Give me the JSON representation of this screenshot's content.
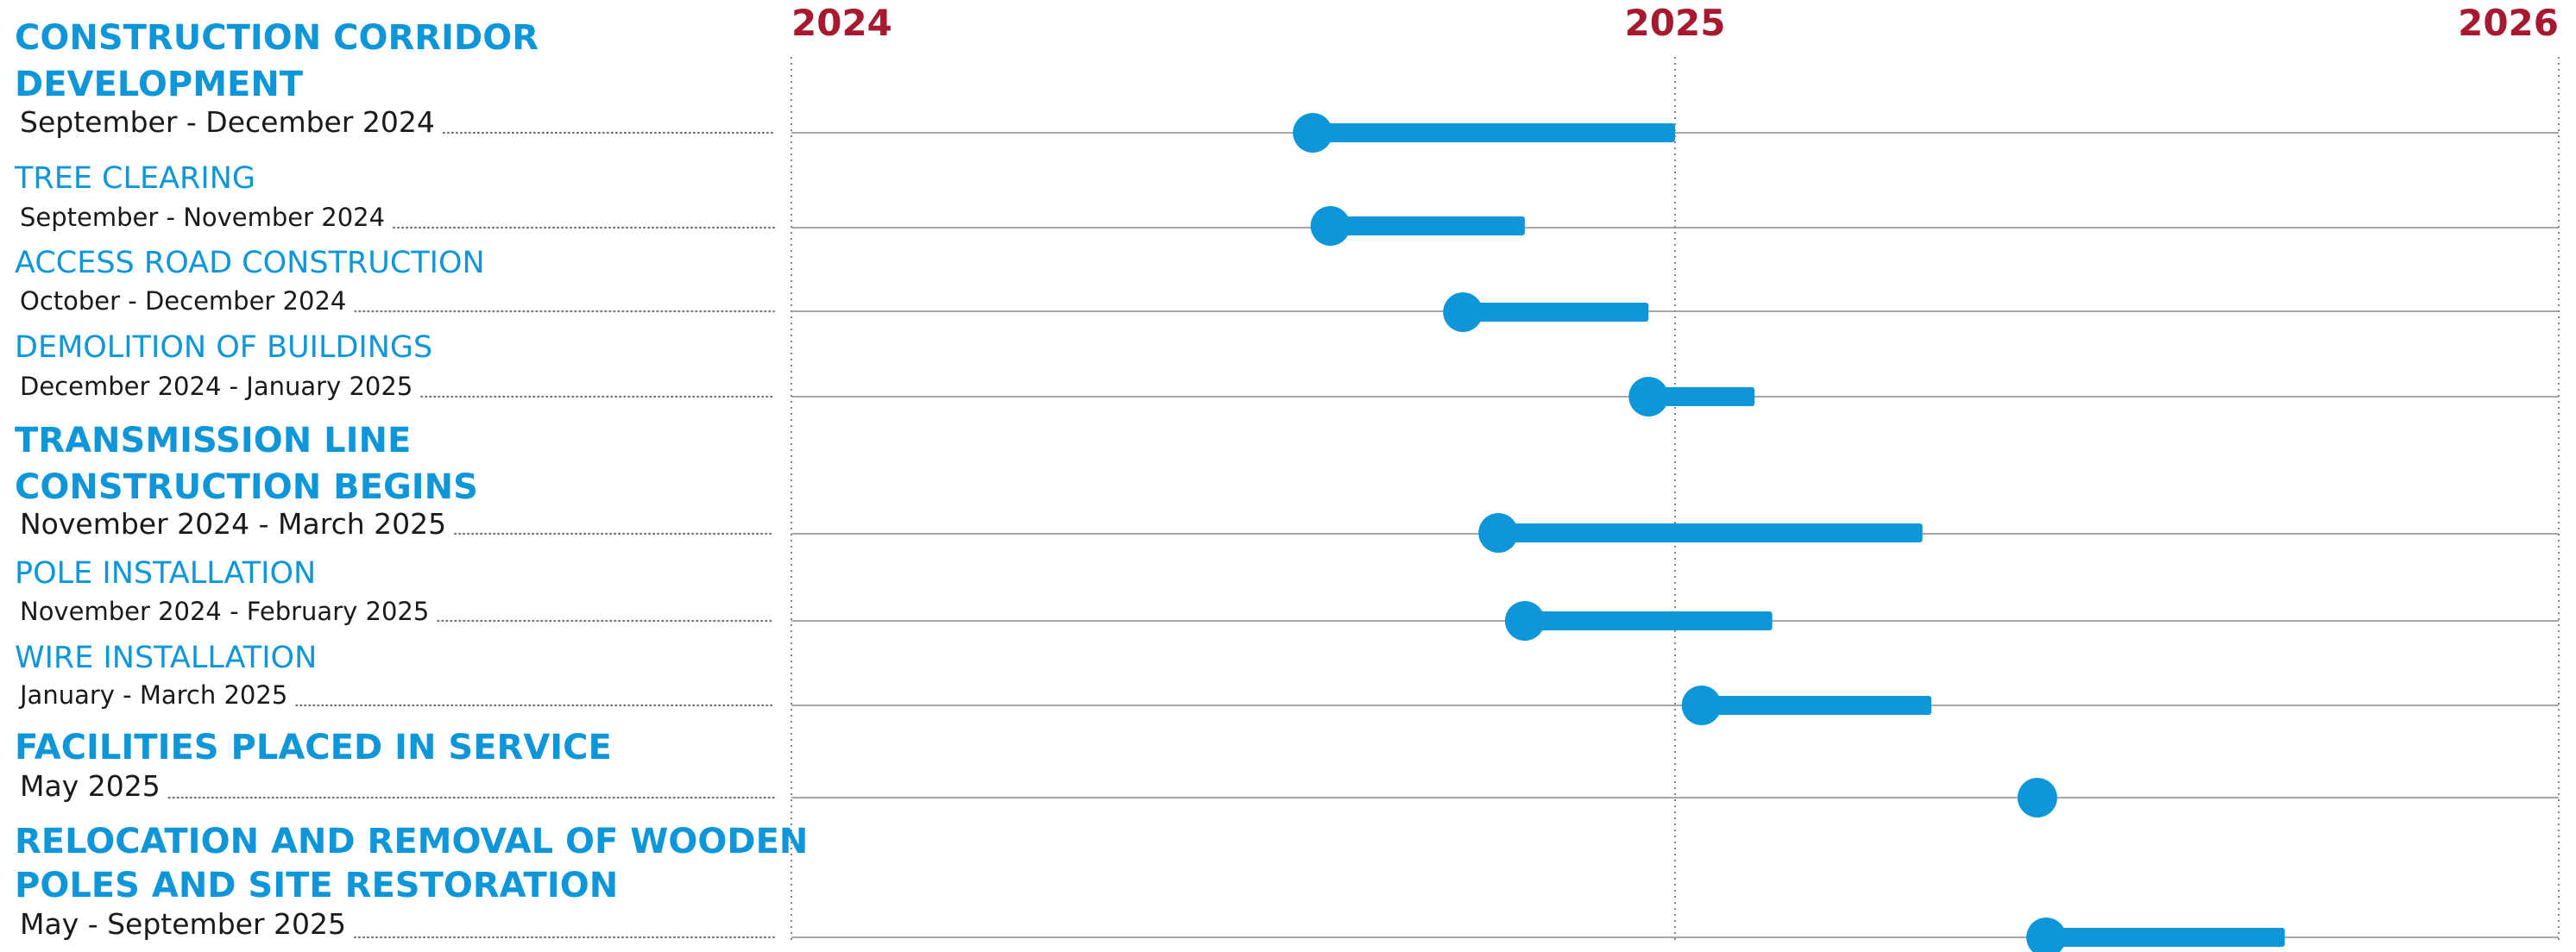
{
  "colors": {
    "bar": "#0f96d9",
    "title": "#0f96d9",
    "year": "#a6192e",
    "text": "#1a1a1a",
    "rule": "#8a8a8a"
  },
  "chart_data": {
    "type": "gantt",
    "x_axis": {
      "unit": "year",
      "ticks": [
        "2024",
        "2025",
        "2026"
      ],
      "range": [
        2024.0,
        2026.0
      ],
      "grid": "dotted vertical lines at each year"
    },
    "tasks": [
      {
        "title": [
          "CONSTRUCTION CORRIDOR",
          "DEVELOPMENT"
        ],
        "dates": "September - December 2024",
        "level": "major",
        "start": 2024.59,
        "end": 2025.0
      },
      {
        "title": [
          "TREE CLEARING"
        ],
        "dates": "September - November 2024",
        "level": "minor",
        "start": 2024.61,
        "end": 2024.83
      },
      {
        "title": [
          "ACCESS ROAD CONSTRUCTION"
        ],
        "dates": "October - December 2024",
        "level": "minor",
        "start": 2024.76,
        "end": 2024.97
      },
      {
        "title": [
          "DEMOLITION OF BUILDINGS"
        ],
        "dates": "December 2024 - January 2025",
        "level": "minor",
        "start": 2024.97,
        "end": 2025.09
      },
      {
        "title": [
          "TRANSMISSION LINE",
          "CONSTRUCTION BEGINS"
        ],
        "dates": "November 2024 - March 2025",
        "level": "major",
        "start": 2024.8,
        "end": 2025.28
      },
      {
        "title": [
          "POLE INSTALLATION"
        ],
        "dates": "November 2024  - February 2025",
        "level": "minor",
        "start": 2024.83,
        "end": 2025.11
      },
      {
        "title": [
          "WIRE INSTALLATION"
        ],
        "dates": "January - March 2025",
        "level": "minor",
        "start": 2025.03,
        "end": 2025.29
      },
      {
        "title": [
          "FACILITIES PLACED IN SERVICE"
        ],
        "dates": "May 2025",
        "level": "major",
        "start": 2025.41,
        "end": 2025.41
      },
      {
        "title": [
          "RELOCATION AND REMOVAL OF WOODEN",
          "POLES AND SITE RESTORATION"
        ],
        "dates": "May - September 2025",
        "level": "major",
        "start": 2025.42,
        "end": 2025.69
      }
    ]
  }
}
